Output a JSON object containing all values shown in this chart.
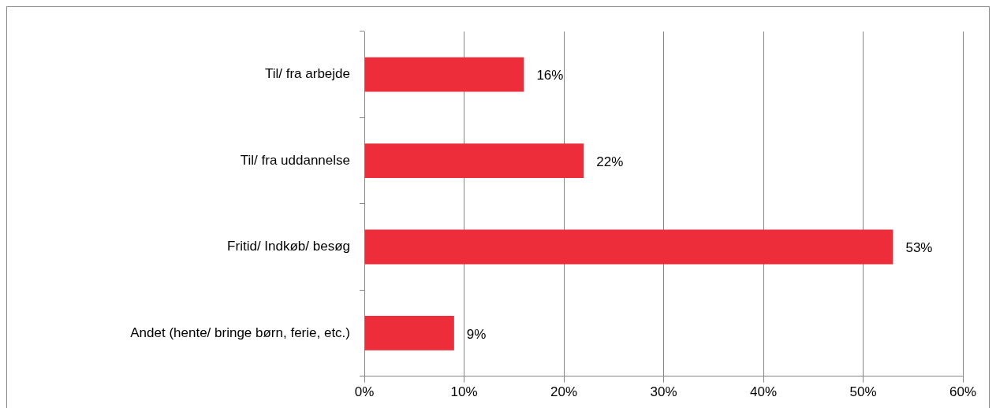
{
  "chart_data": {
    "type": "bar",
    "orientation": "horizontal",
    "categories": [
      "Til/ fra arbejde",
      "Til/ fra uddannelse",
      "Fritid/ Indkøb/ besøg",
      "Andet (hente/ bringe børn, ferie, etc.)"
    ],
    "values": [
      16,
      22,
      53,
      9
    ],
    "color": "#ee2d3a",
    "value_labels": [
      "16%",
      "22%",
      "53%",
      "9%"
    ],
    "xlim": [
      0,
      60
    ],
    "xticks": [
      {
        "value": 0,
        "label": "0%"
      },
      {
        "value": 10,
        "label": "10%"
      },
      {
        "value": 20,
        "label": "20%"
      },
      {
        "value": 30,
        "label": "30%"
      },
      {
        "value": 40,
        "label": "40%"
      },
      {
        "value": 50,
        "label": "50%"
      },
      {
        "value": 60,
        "label": "60%"
      }
    ],
    "grid": "x",
    "legend": false
  }
}
